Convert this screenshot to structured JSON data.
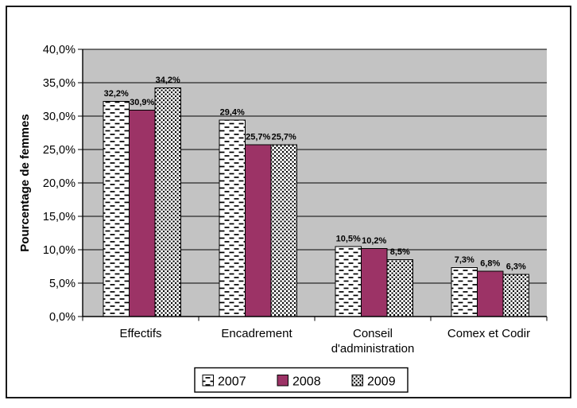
{
  "chart_data": {
    "type": "bar",
    "title": "",
    "ylabel": "Pourcentage de femmes",
    "xlabel": "",
    "categories": [
      "Effectifs",
      "Encadrement",
      "Conseil\nd'administration",
      "Comex et Codir"
    ],
    "series": [
      {
        "name": "2007",
        "pattern": "dash",
        "color": "#000000",
        "values": [
          32.2,
          29.4,
          10.5,
          7.3
        ],
        "labels": [
          "32,2%",
          "29,4%",
          "10,5%",
          "7,3%"
        ]
      },
      {
        "name": "2008",
        "pattern": "solid",
        "color": "#9C3366",
        "values": [
          30.9,
          25.7,
          10.2,
          6.8
        ],
        "labels": [
          "30,9%",
          "25,7%",
          "10,2%",
          "6,8%"
        ]
      },
      {
        "name": "2009",
        "pattern": "dots",
        "color": "#000000",
        "values": [
          34.2,
          25.7,
          8.5,
          6.3
        ],
        "labels": [
          "34,2%",
          "25,7%",
          "8,5%",
          "6,3%"
        ]
      }
    ],
    "ylim": [
      0,
      40
    ],
    "ytick_step": 5,
    "ytick_labels": [
      "0,0%",
      "5,0%",
      "10,0%",
      "15,0%",
      "20,0%",
      "25,0%",
      "30,0%",
      "35,0%",
      "40,0%"
    ],
    "grid": true,
    "legend_position": "bottom",
    "colors": {
      "plot_background": "#C3C3C3",
      "series_2008_fill": "#9C3366",
      "pattern_ink": "#000000",
      "chart_border": "#000000",
      "legend_border": "#000000",
      "background": "#FFFFFF"
    }
  }
}
